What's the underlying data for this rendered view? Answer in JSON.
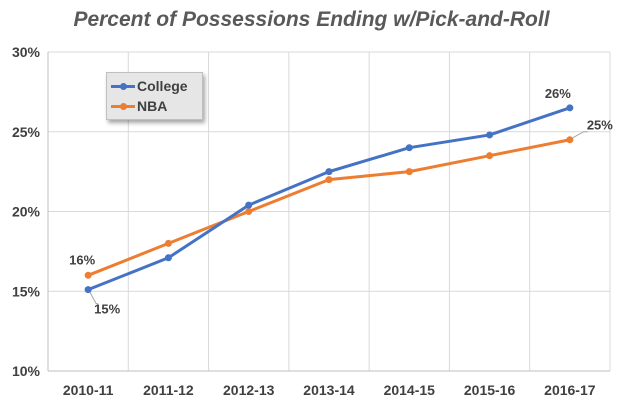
{
  "chart_data": {
    "type": "line",
    "title": "Percent of Possessions Ending w/Pick-and-Roll",
    "categories": [
      "2010-11",
      "2011-12",
      "2012-13",
      "2013-14",
      "2014-15",
      "2015-16",
      "2016-17"
    ],
    "ylim": [
      10,
      30
    ],
    "yticks": [
      10,
      15,
      20,
      25,
      30
    ],
    "ytick_labels": [
      "10%",
      "15%",
      "20%",
      "25%",
      "30%"
    ],
    "grid": true,
    "legend_placement": "top-left",
    "series": [
      {
        "name": "College",
        "color": "#4472c4",
        "values": [
          15.1,
          17.1,
          20.4,
          22.5,
          24.0,
          24.8,
          26.5
        ],
        "data_labels": [
          {
            "index": 0,
            "text": "15%"
          },
          {
            "index": 6,
            "text": "26%"
          }
        ]
      },
      {
        "name": "NBA",
        "color": "#ed7d31",
        "values": [
          16.0,
          18.0,
          20.0,
          22.0,
          22.5,
          23.5,
          24.5
        ],
        "data_labels": [
          {
            "index": 0,
            "text": "16%"
          },
          {
            "index": 6,
            "text": "25%"
          }
        ]
      }
    ]
  }
}
